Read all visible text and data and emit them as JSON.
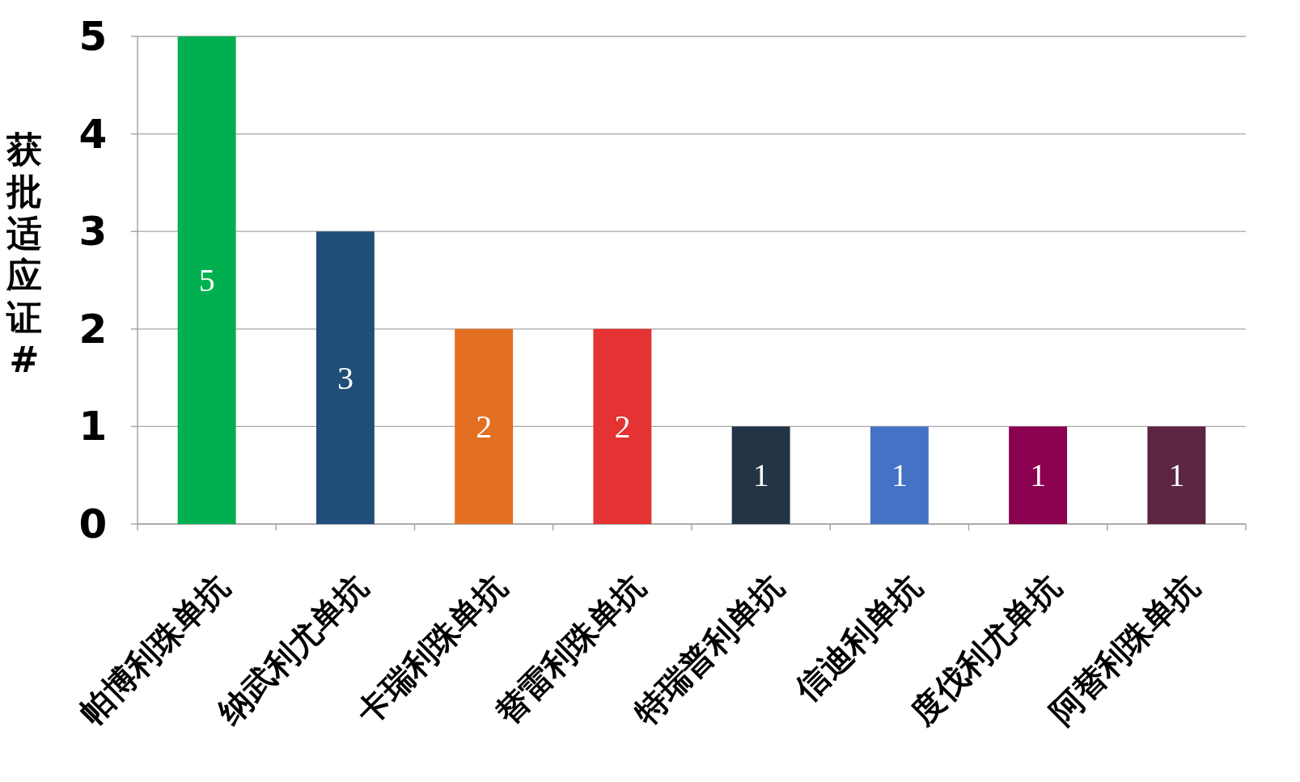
{
  "chart_data": {
    "type": "bar",
    "ylabel": "获批适应证#",
    "categories": [
      "帕博利珠单抗",
      "纳武利尤单抗",
      "卡瑞利珠单抗",
      "替雷利珠单抗",
      "特瑞普利单抗",
      "信迪利单抗",
      "度伐利尤单抗",
      "阿替利珠单抗"
    ],
    "values": [
      5,
      3,
      2,
      2,
      1,
      1,
      1,
      1
    ],
    "colors": [
      "#00b050",
      "#1f4e79",
      "#e36f22",
      "#e53232",
      "#243447",
      "#4472c4",
      "#8b004f",
      "#5c2541"
    ],
    "ylim": [
      0,
      5
    ],
    "yticks": [
      0,
      1,
      2,
      3,
      4,
      5
    ],
    "grid": "y",
    "data_labels": true
  }
}
